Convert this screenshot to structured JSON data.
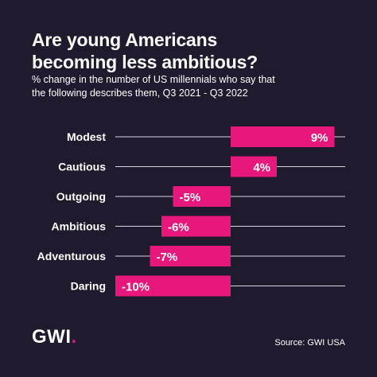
{
  "header": {
    "title_line1": "Are young Americans",
    "title_line2": "becoming less ambitious?",
    "subtitle_line1": "% change in the number of US millennials who say that",
    "subtitle_line2": "the following describes them, Q3 2021 - Q3 2022"
  },
  "footer": {
    "logo_text": "GWI",
    "logo_dot": ".",
    "source": "Source: GWI USA"
  },
  "chart_data": {
    "type": "bar",
    "orientation": "horizontal",
    "title": "Are young Americans becoming less ambitious?",
    "subtitle": "% change in the number of US millennials who say that the following describes them, Q3 2021 - Q3 2022",
    "categories": [
      "Modest",
      "Cautious",
      "Outgoing",
      "Ambitious",
      "Adventurous",
      "Daring"
    ],
    "values": [
      9,
      4,
      -5,
      -6,
      -7,
      -10
    ],
    "labels": [
      "9%",
      "4%",
      "-5%",
      "-6%",
      "-7%",
      "-10%"
    ],
    "xlim": [
      -10,
      10
    ],
    "bar_color": "#e8177c",
    "gridlines": true
  }
}
